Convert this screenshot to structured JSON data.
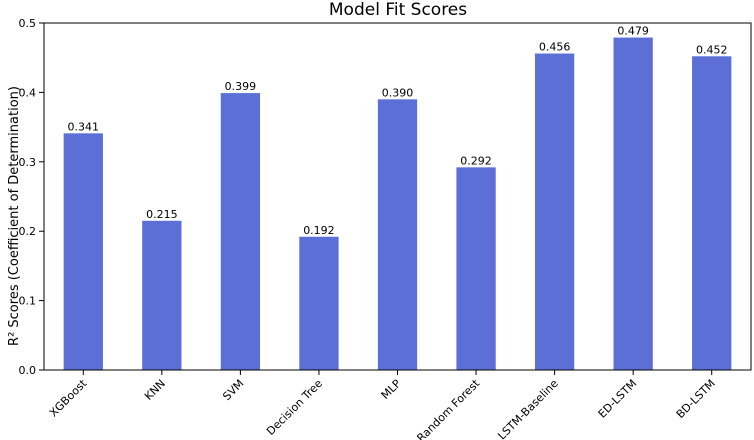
{
  "chart_data": {
    "type": "bar",
    "title": "Model Fit Scores",
    "xlabel": "",
    "ylabel": "R² Scores (Coefficient of Determination)",
    "categories": [
      "XGBoost",
      "KNN",
      "SVM",
      "Decision Tree",
      "MLP",
      "Random Forest",
      "LSTM-Baseline",
      "ED-LSTM",
      "BD-LSTM"
    ],
    "values": [
      0.341,
      0.215,
      0.399,
      0.192,
      0.39,
      0.292,
      0.456,
      0.479,
      0.452
    ],
    "value_labels": [
      "0.341",
      "0.215",
      "0.399",
      "0.192",
      "0.390",
      "0.292",
      "0.456",
      "0.479",
      "0.452"
    ],
    "yticks": [
      0.0,
      0.1,
      0.2,
      0.3,
      0.4,
      0.5
    ],
    "ytick_labels": [
      "0.0",
      "0.1",
      "0.2",
      "0.3",
      "0.4",
      "0.5"
    ],
    "ylim": [
      0,
      0.5
    ],
    "grid": false,
    "legend": "none",
    "bar_color": "#5b6fd6"
  }
}
